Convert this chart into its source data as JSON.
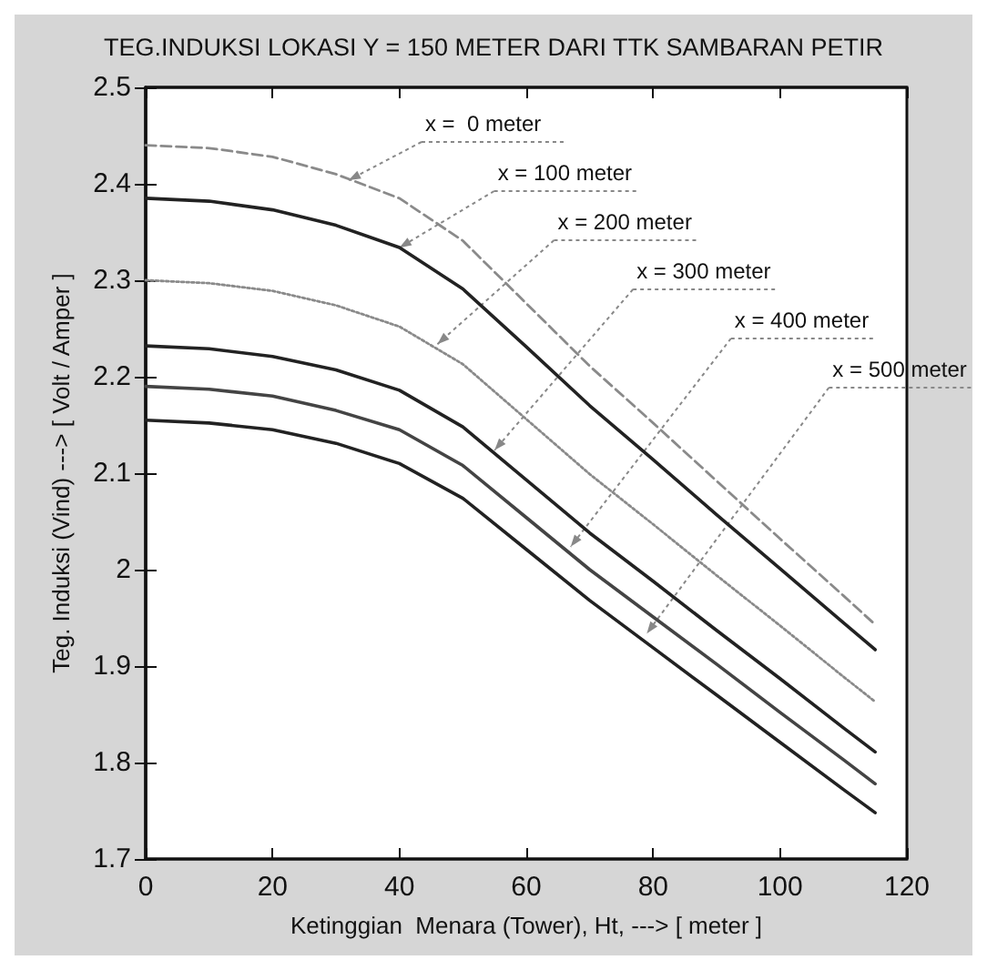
{
  "chart_data": {
    "type": "line",
    "title": "TEG.INDUKSI LOKASI Y = 150 METER DARI TTK SAMBARAN PETIR",
    "xlabel": "Ketinggian  Menara (Tower), Ht, ---> [ meter ]",
    "ylabel": "Teg. Induksi (Vind) ---> [ Volt / Amper ]",
    "x": [
      0,
      10,
      20,
      30,
      40,
      50,
      60,
      70,
      80,
      90,
      100,
      110,
      115
    ],
    "series": [
      {
        "color": "#8a8a8a",
        "line_style": "dashed",
        "values": [
          2.44,
          2.437,
          2.428,
          2.41,
          2.385,
          2.341,
          2.276,
          2.211,
          2.152,
          2.092,
          2.032,
          1.973,
          1.943
        ]
      },
      {
        "color": "#222222",
        "line_style": "solid",
        "values": [
          2.385,
          2.382,
          2.373,
          2.357,
          2.334,
          2.291,
          2.231,
          2.17,
          2.114,
          2.057,
          2.001,
          1.945,
          1.917
        ]
      },
      {
        "color": "#8a8a8a",
        "line_style": "dotted",
        "values": [
          2.3,
          2.297,
          2.289,
          2.274,
          2.252,
          2.213,
          2.156,
          2.099,
          2.047,
          1.994,
          1.942,
          1.889,
          1.863
        ]
      },
      {
        "color": "#222222",
        "line_style": "solid",
        "values": [
          2.232,
          2.229,
          2.221,
          2.207,
          2.186,
          2.148,
          2.093,
          2.038,
          1.988,
          1.937,
          1.887,
          1.836,
          1.811
        ]
      },
      {
        "color": "#444444",
        "line_style": "solid",
        "values": [
          2.19,
          2.187,
          2.18,
          2.165,
          2.145,
          2.108,
          2.054,
          2.0,
          1.951,
          1.902,
          1.852,
          1.803,
          1.778
        ]
      },
      {
        "color": "#222222",
        "line_style": "solid",
        "values": [
          2.155,
          2.152,
          2.145,
          2.131,
          2.11,
          2.074,
          2.021,
          1.968,
          1.919,
          1.87,
          1.821,
          1.772,
          1.748
        ]
      }
    ],
    "annotations": [
      {
        "text": "x =  0 meter",
        "x": 32,
        "y": 2.4
      },
      {
        "text": "x = 100 meter",
        "x": 40,
        "y": 2.33
      },
      {
        "text": "x = 200 meter",
        "x": 46,
        "y": 2.23
      },
      {
        "text": "x = 300 meter",
        "x": 55,
        "y": 2.12
      },
      {
        "text": "x = 400 meter",
        "x": 67,
        "y": 2.02
      },
      {
        "text": "x = 500 meter",
        "x": 79,
        "y": 1.93
      }
    ],
    "xlim": [
      0,
      120
    ],
    "xticks": [
      0,
      20,
      40,
      60,
      80,
      100,
      120
    ],
    "ylim": [
      1.7,
      2.5
    ],
    "yticks": [
      1.7,
      1.8,
      1.9,
      2,
      2.1,
      2.2,
      2.3,
      2.4,
      2.5
    ],
    "grid": false,
    "marker": "none"
  }
}
